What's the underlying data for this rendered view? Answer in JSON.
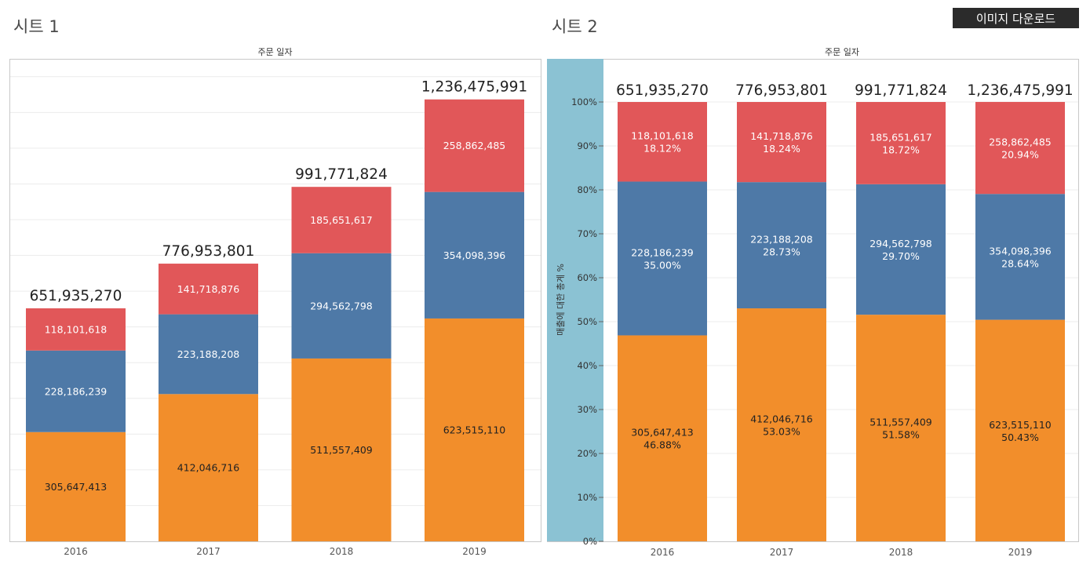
{
  "sheets": [
    {
      "title": "시트 1"
    },
    {
      "title": "시트 2"
    }
  ],
  "download_button_label": "이미지 다운로드",
  "colors": {
    "orange": "#f28e2b",
    "blue": "#4e79a7",
    "red": "#e15759",
    "axis_band": "#8bc2d3",
    "grid": "#ececec",
    "frame": "#c8c8c8"
  },
  "chart_data": [
    {
      "type": "bar",
      "stacked": true,
      "header": "주문 일자",
      "categories": [
        "2016",
        "2017",
        "2018",
        "2019"
      ],
      "series": [
        {
          "values": [
            305647413,
            412046716,
            511557409,
            623515110
          ],
          "labels": [
            "305,647,413",
            "412,046,716",
            "511,557,409",
            "623,515,110"
          ]
        },
        {
          "values": [
            228186239,
            223188208,
            294562798,
            354098396
          ],
          "labels": [
            "228,186,239",
            "223,188,208",
            "294,562,798",
            "354,098,396"
          ]
        },
        {
          "values": [
            118101618,
            141718876,
            185651617,
            258862485
          ],
          "labels": [
            "118,101,618",
            "141,718,876",
            "185,651,617",
            "258,862,485"
          ]
        }
      ],
      "totals": [
        651935270,
        776953801,
        991771824,
        1236475991
      ],
      "total_labels": [
        "651,935,270",
        "776,953,801",
        "991,771,824",
        "1,236,475,991"
      ],
      "ylim": [
        0,
        1350000000
      ]
    },
    {
      "type": "bar",
      "stacked": true,
      "normalized": true,
      "header": "주문 일자",
      "ylabel": "매출에 대한 총계 %",
      "categories": [
        "2016",
        "2017",
        "2018",
        "2019"
      ],
      "yticks": [
        "0%",
        "10%",
        "20%",
        "30%",
        "40%",
        "50%",
        "60%",
        "70%",
        "80%",
        "90%",
        "100%"
      ],
      "series": [
        {
          "percents": [
            46.88,
            53.03,
            51.58,
            50.43
          ],
          "value_labels": [
            "305,647,413",
            "412,046,716",
            "511,557,409",
            "623,515,110"
          ],
          "percent_labels": [
            "46.88%",
            "53.03%",
            "51.58%",
            "50.43%"
          ]
        },
        {
          "percents": [
            35.0,
            28.73,
            29.7,
            28.64
          ],
          "value_labels": [
            "228,186,239",
            "223,188,208",
            "294,562,798",
            "354,098,396"
          ],
          "percent_labels": [
            "35.00%",
            "28.73%",
            "29.70%",
            "28.64%"
          ]
        },
        {
          "percents": [
            18.12,
            18.24,
            18.72,
            20.94
          ],
          "value_labels": [
            "118,101,618",
            "141,718,876",
            "185,651,617",
            "258,862,485"
          ],
          "percent_labels": [
            "18.12%",
            "18.24%",
            "18.72%",
            "20.94%"
          ]
        }
      ],
      "total_labels": [
        "651,935,270",
        "776,953,801",
        "991,771,824",
        "1,236,475,991"
      ],
      "ylim": [
        0,
        100
      ]
    }
  ]
}
